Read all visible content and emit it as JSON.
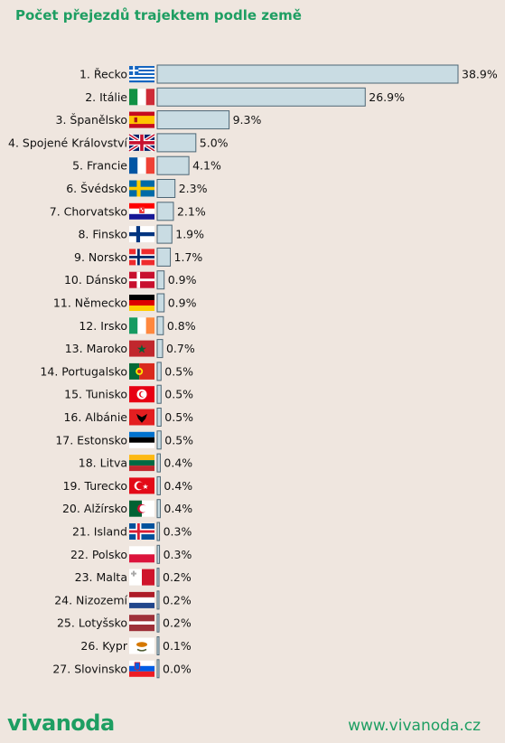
{
  "chart_data": {
    "type": "bar",
    "orientation": "horizontal",
    "title": "Počet přejezdů trajektem podle země",
    "categories": [
      "1. Řecko",
      "2. Itálie",
      "3. Španělsko",
      "4. Spojené Království",
      "5. Francie",
      "6. Švédsko",
      "7. Chorvatsko",
      "8. Finsko",
      "9. Norsko",
      "10. Dánsko",
      "11. Německo",
      "12. Irsko",
      "13. Maroko",
      "14. Portugalsko",
      "15. Tunisko",
      "16. Albánie",
      "17. Estonsko",
      "18. Litva",
      "19. Turecko",
      "20. Alžírsko",
      "21. Island",
      "22. Polsko",
      "23. Malta",
      "24. Nizozemí",
      "25. Lotyšsko",
      "26. Kypr",
      "27. Slovinsko"
    ],
    "values": [
      38.9,
      26.9,
      9.3,
      5.0,
      4.1,
      2.3,
      2.1,
      1.9,
      1.7,
      0.9,
      0.9,
      0.8,
      0.7,
      0.5,
      0.5,
      0.5,
      0.5,
      0.4,
      0.4,
      0.4,
      0.3,
      0.3,
      0.2,
      0.2,
      0.2,
      0.1,
      0.0
    ],
    "value_labels": [
      "38.9%",
      "26.9%",
      "9.3%",
      "5.0%",
      "4.1%",
      "2.3%",
      "2.1%",
      "1.9%",
      "1.7%",
      "0.9%",
      "0.9%",
      "0.8%",
      "0.7%",
      "0.5%",
      "0.5%",
      "0.5%",
      "0.5%",
      "0.4%",
      "0.4%",
      "0.4%",
      "0.3%",
      "0.3%",
      "0.2%",
      "0.2%",
      "0.2%",
      "0.1%",
      "0.0%"
    ],
    "flags": [
      "greece-flag",
      "italy-flag",
      "spain-flag",
      "uk-flag",
      "france-flag",
      "sweden-flag",
      "croatia-flag",
      "finland-flag",
      "norway-flag",
      "denmark-flag",
      "germany-flag",
      "ireland-flag",
      "morocco-flag",
      "portugal-flag",
      "tunisia-flag",
      "albania-flag",
      "estonia-flag",
      "lithuania-flag",
      "turkey-flag",
      "algeria-flag",
      "iceland-flag",
      "poland-flag",
      "malta-flag",
      "netherlands-flag",
      "latvia-flag",
      "cyprus-flag",
      "slovenia-flag"
    ],
    "xlim": [
      0,
      38.9
    ],
    "grid": false,
    "colors": {
      "bar_fill": "#c9dce3",
      "bar_stroke": "#4d6675"
    }
  },
  "footer": {
    "logo": "vivanoda",
    "url": "www.vivanoda.cz"
  },
  "colors": {
    "accent": "#1e9e62",
    "background": "#efe6df"
  }
}
